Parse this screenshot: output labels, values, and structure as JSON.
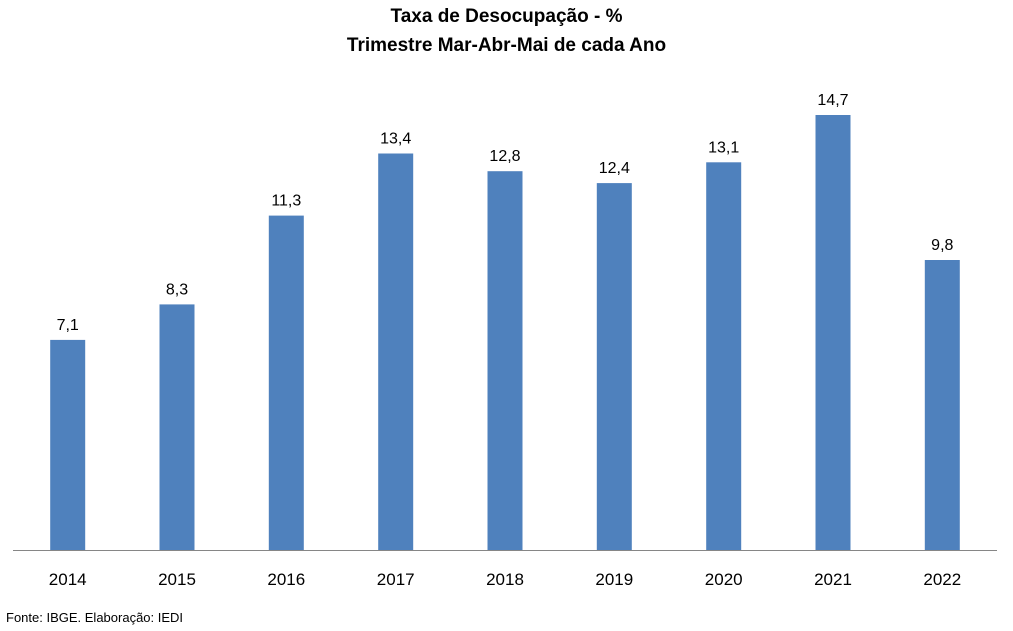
{
  "title": {
    "line1": "Taxa de Desocupação - %",
    "line2": "Trimestre Mar-Abr-Mai de cada Ano"
  },
  "footer": "Fonte: IBGE. Elaboração: IEDI",
  "colors": {
    "bar": "#4f81bd",
    "axis": "#868686",
    "text": "#000000"
  },
  "chart_data": {
    "type": "bar",
    "title": "Taxa de Desocupação - % Trimestre Mar-Abr-Mai de cada Ano",
    "xlabel": "",
    "ylabel": "",
    "categories": [
      "2014",
      "2015",
      "2016",
      "2017",
      "2018",
      "2019",
      "2020",
      "2021",
      "2022"
    ],
    "values": [
      7.1,
      8.3,
      11.3,
      13.4,
      12.8,
      12.4,
      13.1,
      14.7,
      9.8
    ],
    "value_labels": [
      "7,1",
      "8,3",
      "11,3",
      "13,4",
      "12,8",
      "12,4",
      "13,1",
      "14,7",
      "9,8"
    ],
    "ylim": [
      0,
      14.7
    ],
    "grid": false,
    "legend": "none"
  }
}
